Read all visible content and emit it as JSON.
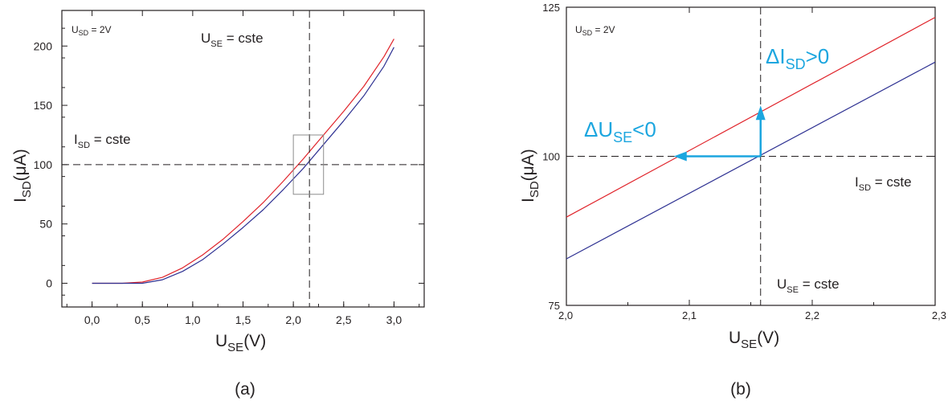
{
  "chart_data": [
    {
      "type": "line",
      "panel_label": "(a)",
      "xlabel_main": "U",
      "xlabel_sub": "SE",
      "xlabel_unit": "(V)",
      "ylabel_main": "I",
      "ylabel_sub": "SD",
      "ylabel_unit": "(μA)",
      "xlim": [
        -0.3,
        3.3
      ],
      "ylim": [
        -20,
        230
      ],
      "x_ticks": [
        0.0,
        0.5,
        1.0,
        1.5,
        2.0,
        2.5,
        3.0
      ],
      "x_tick_labels": [
        "0,0",
        "0,5",
        "1,0",
        "1,5",
        "2,0",
        "2,5",
        "3,0"
      ],
      "y_ticks": [
        0,
        50,
        100,
        150,
        200
      ],
      "y_tick_labels": [
        "0",
        "50",
        "100",
        "150",
        "200"
      ],
      "series": [
        {
          "color": "#e0232a",
          "x": [
            0.0,
            0.3,
            0.5,
            0.7,
            0.9,
            1.1,
            1.3,
            1.5,
            1.7,
            1.9,
            2.1,
            2.3,
            2.5,
            2.7,
            2.9,
            3.0
          ],
          "y": [
            0,
            0,
            1,
            5,
            13,
            24,
            37,
            52,
            68,
            86,
            105,
            125,
            145,
            166,
            191,
            206
          ]
        },
        {
          "color": "#2e3192",
          "x": [
            0.0,
            0.3,
            0.5,
            0.7,
            0.9,
            1.1,
            1.3,
            1.5,
            1.7,
            1.9,
            2.1,
            2.3,
            2.5,
            2.7,
            2.9,
            3.0
          ],
          "y": [
            0,
            0,
            0,
            3,
            10,
            20,
            33,
            47,
            62,
            79,
            97,
            117,
            137,
            158,
            183,
            199
          ]
        }
      ],
      "vline_x": 2.16,
      "hline_y": 100,
      "zoom_box": {
        "x": [
          2.0,
          2.3
        ],
        "y": [
          75,
          125
        ]
      },
      "annotations": {
        "usd_main": "U",
        "usd_sub": "SD",
        "usd_val": " = 2V",
        "use_main": "U",
        "use_sub": "SE",
        "use_val": " = cste",
        "isd_main": "I",
        "isd_sub": "SD",
        "isd_val": " = cste"
      }
    },
    {
      "type": "line",
      "panel_label": "(b)",
      "xlabel_main": "U",
      "xlabel_sub": "SE",
      "xlabel_unit": "(V)",
      "ylabel_main": "I",
      "ylabel_sub": "SD",
      "ylabel_unit": "(μA)",
      "xlim": [
        2.0,
        2.3
      ],
      "ylim": [
        75,
        125
      ],
      "x_ticks": [
        2.0,
        2.1,
        2.2,
        2.3
      ],
      "x_tick_labels": [
        "2,0",
        "2,1",
        "2,2",
        "2,3"
      ],
      "y_ticks": [
        75,
        100,
        125
      ],
      "y_tick_labels": [
        "75",
        "100",
        "125"
      ],
      "series": [
        {
          "color": "#e0232a",
          "x": [
            2.0,
            2.3
          ],
          "y": [
            89.8,
            123.3
          ]
        },
        {
          "color": "#2e3192",
          "x": [
            2.0,
            2.3
          ],
          "y": [
            82.8,
            115.8
          ]
        }
      ],
      "vline_x": 2.158,
      "hline_y": 100,
      "arrow_color": "#1ca6df",
      "annotations": {
        "usd_main": "U",
        "usd_sub": "SD",
        "usd_val": " = 2V",
        "use_main": "U",
        "use_sub": "SE",
        "use_val": " = cste",
        "isd_main": "I",
        "isd_sub": "SD",
        "isd_val": " = cste",
        "di_main": "ΔI",
        "di_sub": "SD",
        "di_val": ">0",
        "du_main": "ΔU",
        "du_sub": "SE",
        "du_val": "<0"
      }
    }
  ]
}
